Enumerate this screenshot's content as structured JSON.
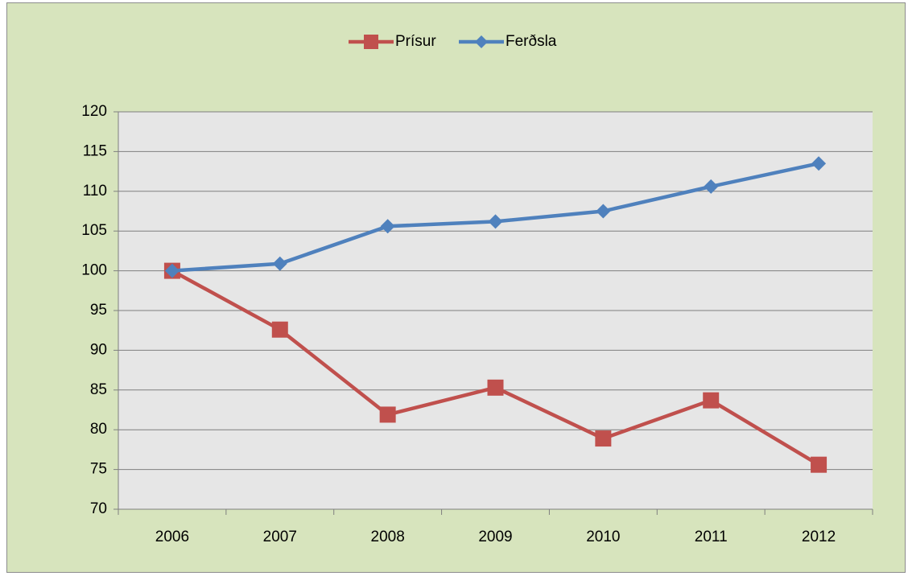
{
  "chart_data": {
    "type": "line",
    "categories": [
      "2006",
      "2007",
      "2008",
      "2009",
      "2010",
      "2011",
      "2012"
    ],
    "series": [
      {
        "name": "Prísur",
        "color": "#c0504d",
        "marker": "square",
        "values": [
          100,
          92.6,
          81.9,
          85.3,
          78.9,
          83.7,
          75.6
        ]
      },
      {
        "name": "Ferðsla",
        "color": "#4f81bd",
        "marker": "diamond",
        "values": [
          100,
          100.9,
          105.6,
          106.2,
          107.5,
          110.6,
          113.5
        ]
      }
    ],
    "ylim": [
      70,
      120
    ],
    "yticks": [
      70,
      75,
      80,
      85,
      90,
      95,
      100,
      105,
      110,
      115,
      120
    ],
    "grid": true,
    "legend": "top"
  }
}
